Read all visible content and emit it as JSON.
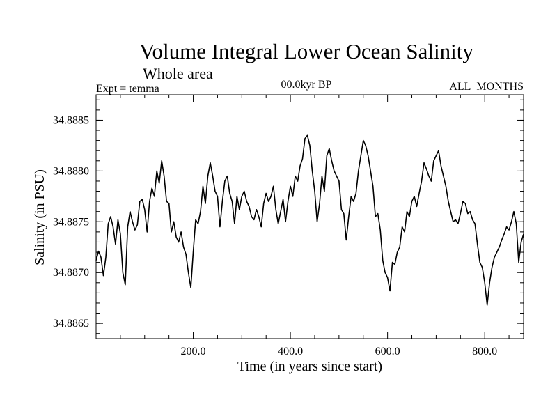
{
  "chart_data": {
    "type": "line",
    "title": "Volume Integral Lower Ocean Salinity",
    "subtitle": "Whole area",
    "left_label": "Expt = temma",
    "center_label": "00.0kyr BP",
    "right_label": "ALL_MONTHS",
    "xlabel": "Time (in years since start)",
    "ylabel": "Salinity (in PSU)",
    "xlim": [
      0,
      880
    ],
    "ylim": [
      34.88635,
      34.88875
    ],
    "x_ticks": [
      200,
      400,
      600,
      800
    ],
    "x_tick_labels": [
      "200.0",
      "400.0",
      "600.0",
      "800.0"
    ],
    "y_ticks": [
      34.8865,
      34.887,
      34.8875,
      34.888,
      34.8885
    ],
    "y_tick_labels": [
      "34.8865",
      "34.8870",
      "34.8875",
      "34.8880",
      "34.8885"
    ],
    "grid": false,
    "line_color": "#000000",
    "series": [
      {
        "x": [
          0,
          5,
          10,
          15,
          20,
          25,
          30,
          35,
          40,
          45,
          50,
          55,
          60,
          65,
          70,
          75,
          80,
          85,
          90,
          95,
          100,
          105,
          110,
          115,
          120,
          125,
          130,
          135,
          140,
          145,
          150,
          155,
          160,
          165,
          170,
          175,
          180,
          185,
          190,
          195,
          200,
          205,
          210,
          215,
          220,
          225,
          230,
          235,
          240,
          245,
          250,
          255,
          260,
          265,
          270,
          275,
          280,
          285,
          290,
          295,
          300,
          305,
          310,
          315,
          320,
          325,
          330,
          335,
          340,
          345,
          350,
          355,
          360,
          365,
          370,
          375,
          380,
          385,
          390,
          395,
          400,
          405,
          410,
          415,
          420,
          425,
          430,
          435,
          440,
          445,
          450,
          455,
          460,
          465,
          470,
          475,
          480,
          485,
          490,
          495,
          500,
          505,
          510,
          515,
          520,
          525,
          530,
          535,
          540,
          545,
          550,
          555,
          560,
          565,
          570,
          575,
          580,
          585,
          590,
          595,
          600,
          605,
          610,
          615,
          620,
          625,
          630,
          635,
          640,
          645,
          650,
          655,
          660,
          665,
          670,
          675,
          680,
          685,
          690,
          695,
          700,
          705,
          710,
          715,
          720,
          725,
          730,
          735,
          740,
          745,
          750,
          755,
          760,
          765,
          770,
          775,
          780,
          785,
          790,
          795,
          800,
          805,
          810,
          815,
          820,
          825,
          830,
          835,
          840,
          845,
          850,
          855,
          860,
          865,
          870,
          875,
          880
        ],
        "y": [
          34.88712,
          34.88721,
          34.88715,
          34.88697,
          34.88715,
          34.88748,
          34.88755,
          34.88745,
          34.88728,
          34.88752,
          34.88738,
          34.887,
          34.88688,
          34.88745,
          34.8876,
          34.8875,
          34.88742,
          34.88747,
          34.8877,
          34.88772,
          34.88762,
          34.8874,
          34.8877,
          34.88783,
          34.88775,
          34.888,
          34.88788,
          34.8881,
          34.88795,
          34.8877,
          34.88768,
          34.8874,
          34.8875,
          34.88735,
          34.8873,
          34.8874,
          34.88725,
          34.88718,
          34.887,
          34.88685,
          34.8872,
          34.88752,
          34.88748,
          34.8876,
          34.88785,
          34.88768,
          34.88795,
          34.88808,
          34.88795,
          34.8878,
          34.88775,
          34.88745,
          34.8877,
          34.8879,
          34.88795,
          34.88778,
          34.8877,
          34.88748,
          34.88775,
          34.88762,
          34.88775,
          34.8878,
          34.8877,
          34.88765,
          34.88755,
          34.88752,
          34.88762,
          34.88755,
          34.88745,
          34.88768,
          34.88778,
          34.8877,
          34.88775,
          34.88785,
          34.88762,
          34.88748,
          34.8876,
          34.88772,
          34.8875,
          34.8877,
          34.88785,
          34.88775,
          34.88795,
          34.8879,
          34.88805,
          34.88812,
          34.88832,
          34.88835,
          34.88825,
          34.888,
          34.8878,
          34.8875,
          34.88768,
          34.88795,
          34.8878,
          34.88815,
          34.88822,
          34.8881,
          34.888,
          34.88795,
          34.8879,
          34.88762,
          34.88758,
          34.88732,
          34.88755,
          34.88775,
          34.8877,
          34.88778,
          34.888,
          34.88815,
          34.8883,
          34.88825,
          34.88815,
          34.888,
          34.88785,
          34.88755,
          34.88758,
          34.88742,
          34.88712,
          34.887,
          34.88695,
          34.88682,
          34.8871,
          34.88708,
          34.8872,
          34.88725,
          34.88745,
          34.8874,
          34.8876,
          34.88755,
          34.8877,
          34.88775,
          34.88765,
          34.88778,
          34.8879,
          34.88808,
          34.88802,
          34.88795,
          34.8879,
          34.8881,
          34.88815,
          34.8882,
          34.88805,
          34.88795,
          34.88785,
          34.8877,
          34.8876,
          34.8875,
          34.88752,
          34.88748,
          34.88758,
          34.8877,
          34.88768,
          34.88758,
          34.8876,
          34.88752,
          34.88748,
          34.88728,
          34.8871,
          34.88705,
          34.8869,
          34.88668,
          34.8869,
          34.88705,
          34.88715,
          34.8872,
          34.88725,
          34.88732,
          34.88738,
          34.88745,
          34.88742,
          34.8875,
          34.8876,
          34.88748,
          34.8871,
          34.8873,
          34.88738
        ]
      }
    ]
  }
}
